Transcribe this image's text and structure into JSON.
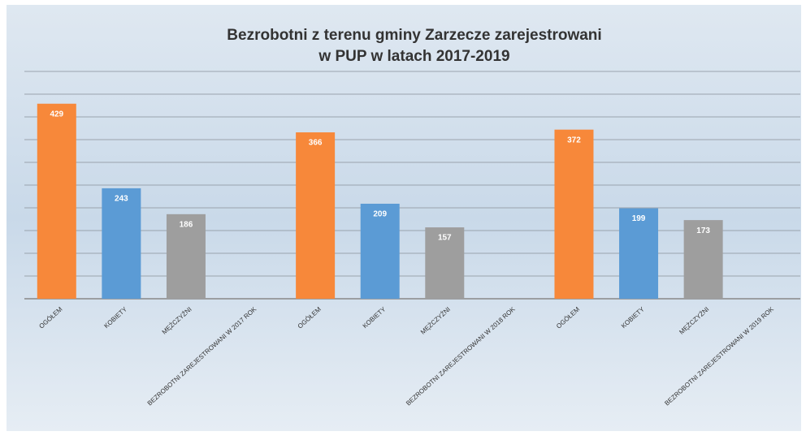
{
  "chart_data": {
    "type": "bar",
    "title": [
      "Bezrobotni z terenu gminy Zarzecze zarejestrowani",
      "w PUP w latach 2017-2019"
    ],
    "categories": [
      "OGÓŁEM",
      "KOBIETY",
      "MĘŻCZYŹNI",
      "BEZROBOTNI ZAREJESTROWANI W 2017 ROK",
      "OGÓŁEM",
      "KOBIETY",
      "MĘŻCZYŹNI",
      "BEZROBOTNI ZAREJESTROWANI W 2018 ROK",
      "OGÓŁEM",
      "KOBIETY",
      "MĘŻCZYŹNI",
      "BEZROBOTNI ZAREJESTROWANI W 2019 ROK"
    ],
    "values": [
      429,
      243,
      186,
      null,
      366,
      209,
      157,
      null,
      372,
      199,
      173,
      null
    ],
    "colors": [
      "#f7883a",
      "#5b9bd5",
      "#9e9e9e",
      null,
      "#f7883a",
      "#5b9bd5",
      "#9e9e9e",
      null,
      "#f7883a",
      "#5b9bd5",
      "#9e9e9e",
      null
    ],
    "ylim": [
      0,
      500
    ],
    "yticks": [
      0,
      50,
      100,
      150,
      200,
      250,
      300,
      350,
      400,
      450,
      500
    ],
    "grid": true,
    "tick_labels": false
  }
}
